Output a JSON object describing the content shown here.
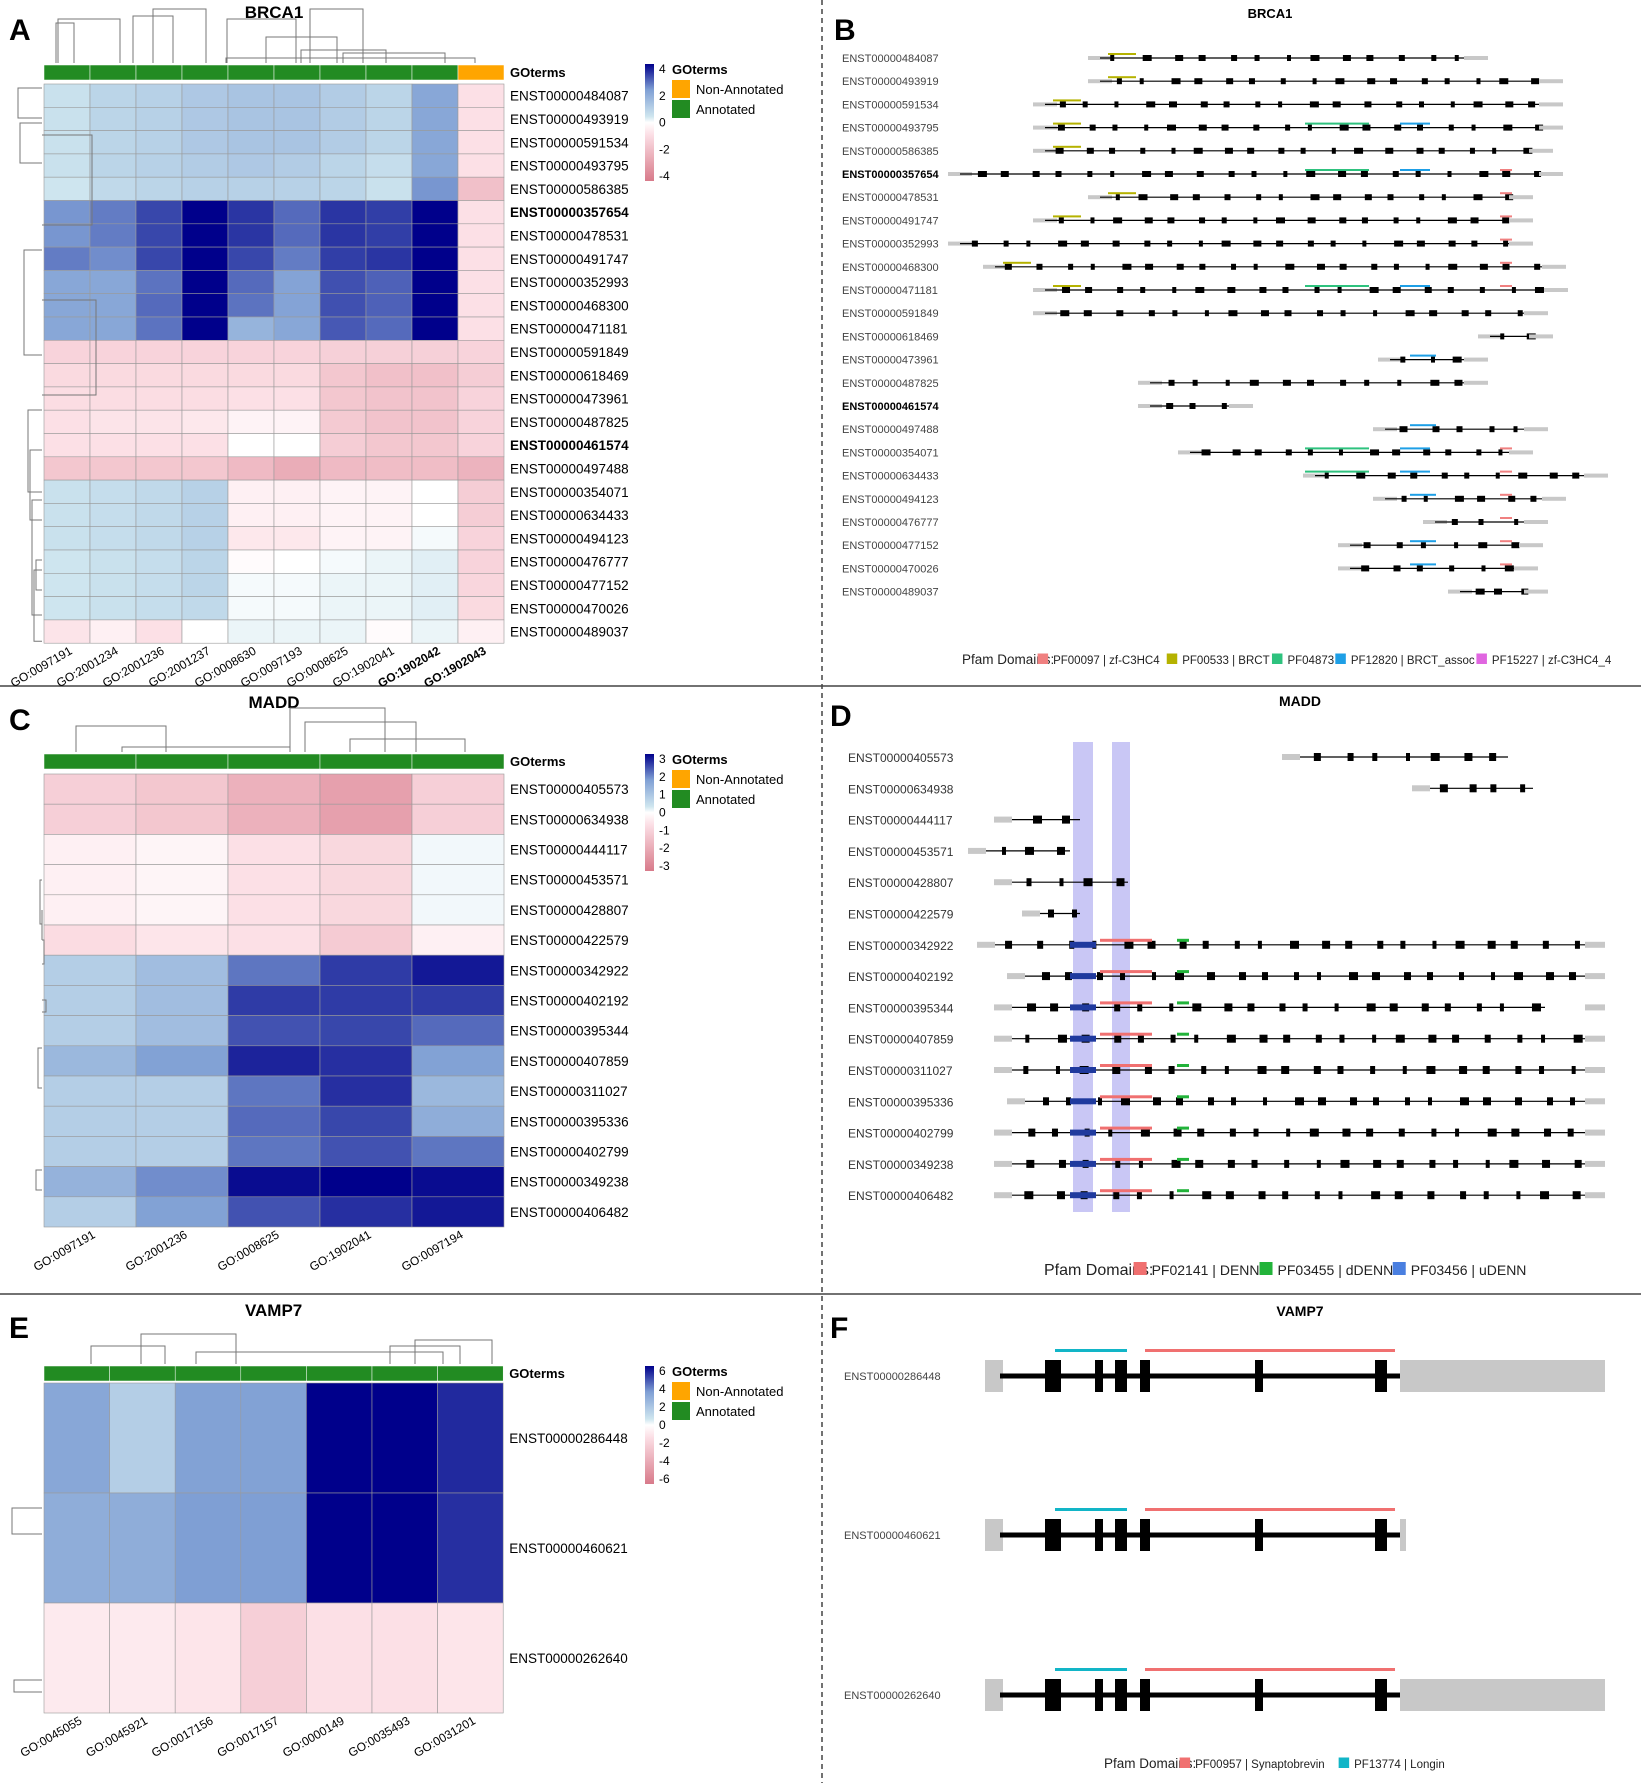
{
  "divider_color": "#444444",
  "heat_colors": {
    "neg_strong": "#d87a8a",
    "neg_light": "#fce0e6",
    "zero": "#ffffff",
    "pos_light": "#cfe6ef",
    "pos_mid": "#7f9fd4",
    "pos_strong": "#00008b"
  },
  "go_colors": {
    "Non-Annotated": "#ffa500",
    "Annotated": "#228b22"
  },
  "go_legend": {
    "title": "GOterms",
    "items": [
      "Non-Annotated",
      "Annotated"
    ]
  },
  "chart_data": [
    {
      "panel": "A",
      "type": "heatmap",
      "title": "BRCA1",
      "annotation_label": "GOterms",
      "columns": [
        "GO:0097191",
        "GO:2001234",
        "GO:2001236",
        "GO:2001237",
        "GO:0008630",
        "GO:0097193",
        "GO:0008625",
        "GO:1902041",
        "GO:1902042",
        "GO:1902043"
      ],
      "bold_columns": [
        "GO:1902042",
        "GO:1902043"
      ],
      "column_annotation": [
        "Annotated",
        "Annotated",
        "Annotated",
        "Annotated",
        "Annotated",
        "Annotated",
        "Annotated",
        "Annotated",
        "Annotated",
        "Non-Annotated"
      ],
      "rows": [
        "ENST00000484087",
        "ENST00000493919",
        "ENST00000591534",
        "ENST00000493795",
        "ENST00000586385",
        "ENST00000357654",
        "ENST00000478531",
        "ENST00000491747",
        "ENST00000352993",
        "ENST00000468300",
        "ENST00000471181",
        "ENST00000591849",
        "ENST00000618469",
        "ENST00000473961",
        "ENST00000487825",
        "ENST00000461574",
        "ENST00000497488",
        "ENST00000354071",
        "ENST00000634433",
        "ENST00000494123",
        "ENST00000476777",
        "ENST00000477152",
        "ENST00000470026",
        "ENST00000489037"
      ],
      "bold_rows": [
        "ENST00000357654",
        "ENST00000461574"
      ],
      "values": [
        [
          0.6,
          0.9,
          1.0,
          1.2,
          1.3,
          1.3,
          1.1,
          0.9,
          2.0,
          -0.8
        ],
        [
          0.6,
          0.9,
          1.0,
          1.2,
          1.3,
          1.3,
          1.1,
          0.9,
          2.0,
          -0.8
        ],
        [
          0.6,
          0.9,
          1.0,
          1.2,
          1.3,
          1.3,
          1.1,
          0.9,
          2.0,
          -0.8
        ],
        [
          0.6,
          0.9,
          1.0,
          1.1,
          1.2,
          1.1,
          0.9,
          0.7,
          2.0,
          -0.8
        ],
        [
          0.5,
          0.8,
          0.9,
          1.0,
          1.0,
          1.0,
          0.9,
          0.6,
          2.3,
          -1.8
        ],
        [
          2.3,
          2.6,
          3.2,
          4.3,
          3.4,
          2.8,
          3.4,
          3.3,
          4.3,
          -0.8
        ],
        [
          2.3,
          2.6,
          3.2,
          4.3,
          3.4,
          2.8,
          3.4,
          3.3,
          4.3,
          -0.8
        ],
        [
          2.6,
          2.4,
          3.2,
          4.3,
          3.2,
          2.6,
          3.3,
          3.4,
          4.3,
          -0.8
        ],
        [
          2.0,
          2.0,
          2.7,
          4.1,
          2.8,
          2.1,
          3.1,
          2.9,
          4.2,
          -0.8
        ],
        [
          2.0,
          2.0,
          2.8,
          4.1,
          2.7,
          2.1,
          3.1,
          2.9,
          4.2,
          -0.8
        ],
        [
          2.0,
          2.0,
          2.7,
          4.1,
          1.7,
          2.0,
          3.0,
          2.8,
          4.2,
          -0.8
        ],
        [
          -1.2,
          -1.2,
          -1.2,
          -1.2,
          -1.2,
          -1.2,
          -1.3,
          -1.3,
          -1.3,
          -1.2
        ],
        [
          -1.0,
          -1.0,
          -1.0,
          -1.0,
          -1.0,
          -1.0,
          -1.6,
          -1.8,
          -1.8,
          -1.4
        ],
        [
          -0.9,
          -0.9,
          -0.9,
          -0.9,
          -0.8,
          -0.8,
          -1.6,
          -1.7,
          -1.7,
          -1.2
        ],
        [
          -0.8,
          -0.7,
          -0.7,
          -0.6,
          -0.3,
          -0.3,
          -1.5,
          -1.7,
          -1.7,
          -1.2
        ],
        [
          -0.8,
          -0.8,
          -0.8,
          -0.8,
          0.0,
          0.0,
          -1.4,
          -1.6,
          -1.6,
          -1.2
        ],
        [
          -1.6,
          -1.6,
          -1.6,
          -1.6,
          -2.0,
          -2.4,
          -2.0,
          -1.9,
          -1.9,
          -2.2
        ],
        [
          0.6,
          0.7,
          0.8,
          1.0,
          -0.4,
          -0.4,
          -0.3,
          -0.3,
          0.0,
          -1.4
        ],
        [
          0.6,
          0.7,
          0.8,
          1.0,
          -0.4,
          -0.4,
          -0.3,
          -0.3,
          0.0,
          -1.4
        ],
        [
          0.6,
          0.7,
          0.8,
          1.0,
          -0.6,
          -0.6,
          -0.3,
          -0.3,
          0.1,
          -1.2
        ],
        [
          0.5,
          0.6,
          0.7,
          0.9,
          -0.1,
          0.0,
          0.1,
          0.2,
          0.3,
          -1.2
        ],
        [
          0.5,
          0.6,
          0.7,
          0.9,
          0.1,
          0.1,
          0.2,
          0.2,
          0.3,
          -1.1
        ],
        [
          0.5,
          0.6,
          0.7,
          0.8,
          0.1,
          0.1,
          0.2,
          0.2,
          0.3,
          -1.0
        ],
        [
          -0.7,
          -0.4,
          -0.8,
          0.0,
          0.2,
          0.2,
          0.2,
          -0.1,
          0.2,
          -0.4
        ]
      ],
      "color_scale": {
        "min": -4,
        "max": 4,
        "ticks": [
          "4",
          "2",
          "0",
          "-2",
          "-4"
        ]
      }
    },
    {
      "panel": "B",
      "type": "transcript_structure",
      "title": "BRCA1",
      "rows": [
        "ENST00000484087",
        "ENST00000493919",
        "ENST00000591534",
        "ENST00000493795",
        "ENST00000586385",
        "ENST00000357654",
        "ENST00000478531",
        "ENST00000491747",
        "ENST00000352993",
        "ENST00000468300",
        "ENST00000471181",
        "ENST00000591849",
        "ENST00000618469",
        "ENST00000473961",
        "ENST00000487825",
        "ENST00000461574",
        "ENST00000497488",
        "ENST00000354071",
        "ENST00000634433",
        "ENST00000494123",
        "ENST00000476777",
        "ENST00000477152",
        "ENST00000470026",
        "ENST00000489037"
      ],
      "bold_rows": [
        "ENST00000357654",
        "ENST00000461574"
      ],
      "legend_title": "Pfam Domains:",
      "legend": [
        {
          "label": "PF00097 | zf-C3HC4",
          "color": "#f08080"
        },
        {
          "label": "PF00533 | BRCT",
          "color": "#b5b200"
        },
        {
          "label": "PF04873",
          "color": "#2ec27e"
        },
        {
          "label": "PF12820 | BRCT_assoc",
          "color": "#1e9fe6"
        },
        {
          "label": "PF15227 | zf-C3HC4_4",
          "color": "#e066e0"
        }
      ]
    },
    {
      "panel": "C",
      "type": "heatmap",
      "title": "MADD",
      "annotation_label": "GOterms",
      "columns": [
        "GO:0097191",
        "GO:2001236",
        "GO:0008625",
        "GO:1902041",
        "GO:0097194"
      ],
      "column_annotation": [
        "Annotated",
        "Annotated",
        "Annotated",
        "Annotated",
        "Annotated"
      ],
      "rows": [
        "ENST00000405573",
        "ENST00000634938",
        "ENST00000444117",
        "ENST00000453571",
        "ENST00000428807",
        "ENST00000422579",
        "ENST00000342922",
        "ENST00000402192",
        "ENST00000395344",
        "ENST00000407859",
        "ENST00000311027",
        "ENST00000395336",
        "ENST00000402799",
        "ENST00000349238",
        "ENST00000406482"
      ],
      "values": [
        [
          -1.0,
          -1.2,
          -1.7,
          -2.1,
          -1.0
        ],
        [
          -1.0,
          -1.2,
          -1.7,
          -2.1,
          -1.0
        ],
        [
          -0.3,
          -0.2,
          -0.6,
          -0.8,
          0.1
        ],
        [
          -0.3,
          -0.2,
          -0.6,
          -0.8,
          0.1
        ],
        [
          -0.3,
          -0.2,
          -0.6,
          -0.8,
          0.1
        ],
        [
          -0.7,
          -0.5,
          -0.6,
          -1.1,
          -0.3
        ],
        [
          0.8,
          1.1,
          2.0,
          2.5,
          2.8
        ],
        [
          0.8,
          1.1,
          2.5,
          2.5,
          2.5
        ],
        [
          0.8,
          1.1,
          2.3,
          2.4,
          2.1
        ],
        [
          1.2,
          1.6,
          2.7,
          2.6,
          1.6
        ],
        [
          0.8,
          0.8,
          2.0,
          2.6,
          1.2
        ],
        [
          0.8,
          0.8,
          2.1,
          2.4,
          1.4
        ],
        [
          0.8,
          0.8,
          2.0,
          2.3,
          2.0
        ],
        [
          1.3,
          1.8,
          2.9,
          3.2,
          2.9
        ],
        [
          0.8,
          1.6,
          2.3,
          2.6,
          2.8
        ]
      ],
      "color_scale": {
        "min": -3,
        "max": 3,
        "ticks": [
          "3",
          "2",
          "1",
          "0",
          "-1",
          "-2",
          "-3"
        ]
      }
    },
    {
      "panel": "D",
      "type": "transcript_structure",
      "title": "MADD",
      "rows": [
        "ENST00000405573",
        "ENST00000634938",
        "ENST00000444117",
        "ENST00000453571",
        "ENST00000428807",
        "ENST00000422579",
        "ENST00000342922",
        "ENST00000402192",
        "ENST00000395344",
        "ENST00000407859",
        "ENST00000311027",
        "ENST00000395336",
        "ENST00000402799",
        "ENST00000349238",
        "ENST00000406482"
      ],
      "legend_title": "Pfam Domains:",
      "legend": [
        {
          "label": "PF02141 | DENN",
          "color": "#f07070"
        },
        {
          "label": "PF03455 | dDENN",
          "color": "#22b33a"
        },
        {
          "label": "PF03456 | uDENN",
          "color": "#4a7fe0"
        }
      ]
    },
    {
      "panel": "E",
      "type": "heatmap",
      "title": "VAMP7",
      "annotation_label": "GOterms",
      "columns": [
        "GO:0045055",
        "GO:0045921",
        "GO:0017156",
        "GO:0017157",
        "GO:0000149",
        "GO:0035493",
        "GO:0031201"
      ],
      "column_annotation": [
        "Annotated",
        "Annotated",
        "Annotated",
        "Annotated",
        "Annotated",
        "Annotated",
        "Annotated"
      ],
      "rows": [
        "ENST00000286448",
        "ENST00000460621",
        "ENST00000262640"
      ],
      "values": [
        [
          3.0,
          1.6,
          3.2,
          3.2,
          6.4,
          6.4,
          5.3
        ],
        [
          2.8,
          2.8,
          3.3,
          3.3,
          6.4,
          6.4,
          5.2
        ],
        [
          -0.8,
          -0.8,
          -1.0,
          -2.0,
          -1.2,
          -1.2,
          -1.0
        ]
      ],
      "color_scale": {
        "min": -6,
        "max": 6,
        "ticks": [
          "6",
          "4",
          "2",
          "0",
          "-2",
          "-4",
          "-6"
        ]
      }
    },
    {
      "panel": "F",
      "type": "transcript_structure",
      "title": "VAMP7",
      "rows": [
        "ENST00000286448",
        "ENST00000460621",
        "ENST00000262640"
      ],
      "legend_title": "Pfam Domains:",
      "legend": [
        {
          "label": "PF00957 | Synaptobrevin",
          "color": "#f07070"
        },
        {
          "label": "PF13774 | Longin",
          "color": "#12b5c7"
        }
      ]
    }
  ]
}
